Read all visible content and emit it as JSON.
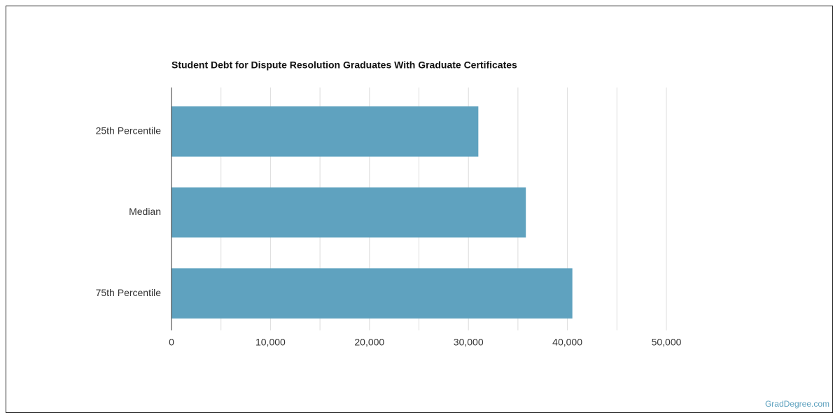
{
  "chart_data": {
    "type": "barh",
    "title": "Student Debt for Dispute Resolution Graduates With Graduate Certificates",
    "categories": [
      "25th Percentile",
      "Median",
      "75th Percentile"
    ],
    "values": [
      31000,
      35800,
      40500
    ],
    "color": "#5fa2bf",
    "xlim": [
      0,
      50000
    ],
    "xticks": [
      0,
      {
        "value": 10000,
        "label": "10,000"
      },
      {
        "value": 20000,
        "label": "20,000"
      },
      {
        "value": 30000,
        "label": "30,000"
      },
      {
        "value": 40000,
        "label": "40,000"
      },
      {
        "value": 50000,
        "label": "50,000"
      }
    ],
    "xminorticks": [
      5000,
      15000,
      25000,
      35000,
      45000
    ],
    "grid": true
  },
  "footer": "GradDegree.com"
}
